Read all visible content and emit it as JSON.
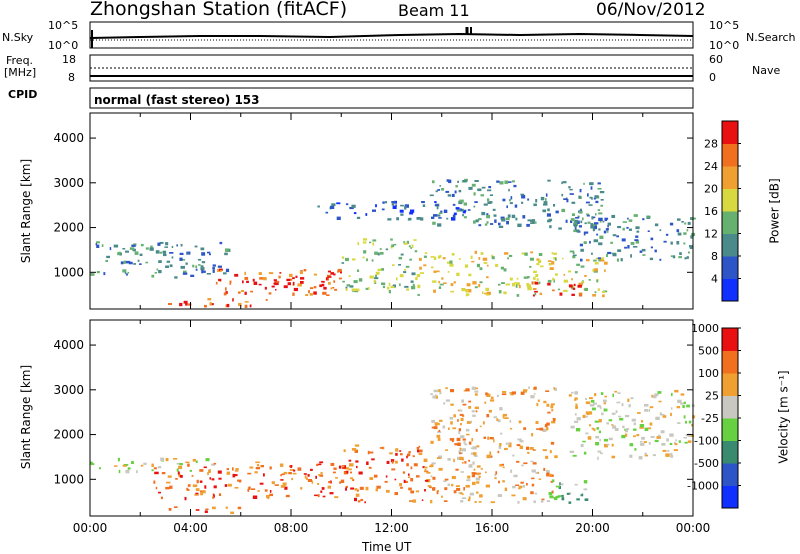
{
  "header": {
    "title": "Zhongshan Station (fitACF)",
    "beam": "Beam 11",
    "date": "06/Nov/2012"
  },
  "panels": {
    "nsky": {
      "left_label": "N.Sky",
      "left_ticks": [
        "10^5",
        "10^0"
      ],
      "right_label": "N.Search",
      "right_ticks": [
        "10^5",
        "10^0"
      ]
    },
    "freq": {
      "left_label_line1": "Freq.",
      "left_label_line2": "[MHz]",
      "left_ticks": [
        "18",
        "8"
      ],
      "right_label": "Nave",
      "right_ticks": [
        "60",
        "0"
      ]
    },
    "cpid": {
      "label": "CPID",
      "value": "normal (fast stereo) 153"
    }
  },
  "colors": {
    "power_scale": [
      "#1030ff",
      "#2d55c8",
      "#4a8a8a",
      "#66b070",
      "#d8d840",
      "#f0a030",
      "#f07020",
      "#e81010"
    ],
    "velocity_scale": [
      "#1030ff",
      "#2d55c8",
      "#3a8a70",
      "#66d040",
      "#c8c8c0",
      "#f0a030",
      "#f07020",
      "#e81010"
    ],
    "grid": "#cccccc"
  },
  "chart_data": [
    {
      "type": "heatmap",
      "name": "power",
      "xlabel": "",
      "ylabel": "Slant Range [km]",
      "colorbar_label": "Power [dB]",
      "colorbar_ticks": [
        "4",
        "8",
        "12",
        "16",
        "20",
        "24",
        "28"
      ],
      "y_ticks": [
        "1000",
        "2000",
        "3000",
        "4000"
      ],
      "ylim": [
        180,
        4560
      ],
      "xlim_hours": [
        0,
        24
      ],
      "echo_regions": [
        {
          "t0": 0.0,
          "t1": 5.5,
          "r0": 900,
          "r1": 1700,
          "level": 2
        },
        {
          "t0": 3.0,
          "t1": 7.0,
          "r0": 250,
          "r1": 450,
          "level": 6
        },
        {
          "t0": 5.0,
          "t1": 10.0,
          "r0": 500,
          "r1": 1100,
          "level": 6
        },
        {
          "t0": 6.0,
          "t1": 9.5,
          "r0": 650,
          "r1": 900,
          "level": 7
        },
        {
          "t0": 10.0,
          "t1": 13.0,
          "r0": 600,
          "r1": 1800,
          "level": 3
        },
        {
          "t0": 13.0,
          "t1": 20.5,
          "r0": 500,
          "r1": 1500,
          "level": 4
        },
        {
          "t0": 17.5,
          "t1": 19.5,
          "r0": 500,
          "r1": 800,
          "level": 7
        },
        {
          "t0": 9.0,
          "t1": 15.0,
          "r0": 2200,
          "r1": 2600,
          "level": 1
        },
        {
          "t0": 13.5,
          "t1": 20.5,
          "r0": 2000,
          "r1": 3100,
          "level": 2
        },
        {
          "t0": 19.0,
          "t1": 24.0,
          "r0": 1300,
          "r1": 2300,
          "level": 2
        }
      ]
    },
    {
      "type": "heatmap",
      "name": "velocity",
      "xlabel": "Time UT",
      "ylabel": "Slant Range [km]",
      "colorbar_label": "Velocity [m s⁻¹]",
      "colorbar_ticks": [
        "-1000",
        "-500",
        "-100",
        "-25",
        "25",
        "100",
        "500",
        "1000"
      ],
      "y_ticks": [
        "1000",
        "2000",
        "3000",
        "4000"
      ],
      "x_ticks": [
        "00:00",
        "04:00",
        "08:00",
        "12:00",
        "16:00",
        "20:00",
        "00:00"
      ],
      "ylim": [
        180,
        4560
      ],
      "xlim_hours": [
        0,
        24
      ],
      "echo_regions": [
        {
          "t0": 0.0,
          "t1": 5.0,
          "r0": 1200,
          "r1": 1500,
          "level": 4
        },
        {
          "t0": 2.5,
          "t1": 10.0,
          "r0": 600,
          "r1": 1400,
          "level": 6
        },
        {
          "t0": 3.0,
          "t1": 6.0,
          "r0": 250,
          "r1": 400,
          "level": 6
        },
        {
          "t0": 10.0,
          "t1": 13.5,
          "r0": 500,
          "r1": 1800,
          "level": 6
        },
        {
          "t0": 13.5,
          "t1": 18.5,
          "r0": 500,
          "r1": 3100,
          "level": 5
        },
        {
          "t0": 18.0,
          "t1": 20.0,
          "r0": 500,
          "r1": 1000,
          "level": 3
        },
        {
          "t0": 19.0,
          "t1": 24.0,
          "r0": 1500,
          "r1": 3000,
          "level": 4
        }
      ]
    }
  ]
}
